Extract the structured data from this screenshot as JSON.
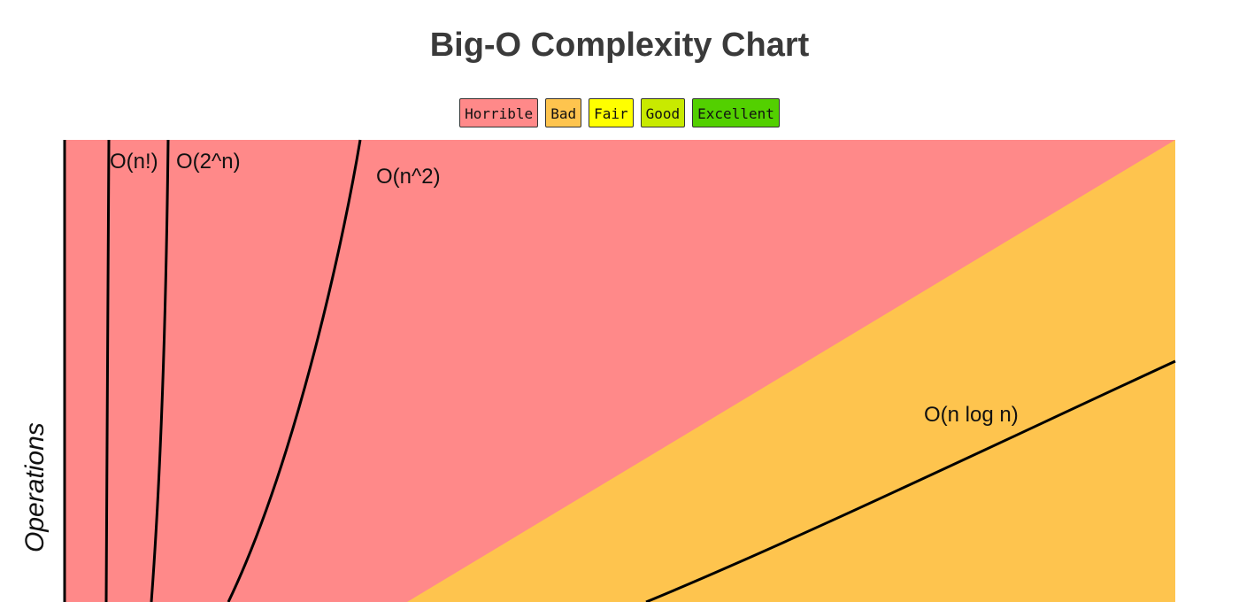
{
  "chart_data": {
    "type": "area",
    "title": "Big-O Complexity Chart",
    "xlabel": "",
    "ylabel": "Operations",
    "legend": {
      "placement": "top-center",
      "entries": [
        {
          "label": "Horrible",
          "color": "#ff8989"
        },
        {
          "label": "Bad",
          "color": "#fec44e"
        },
        {
          "label": "Fair",
          "color": "#ffff00"
        },
        {
          "label": "Good",
          "color": "#c8ea00"
        },
        {
          "label": "Excellent",
          "color": "#53d000"
        }
      ]
    },
    "regions": [
      {
        "rating": "Horrible",
        "color": "#ff8989"
      },
      {
        "rating": "Bad",
        "color": "#fec44e"
      }
    ],
    "series": [
      {
        "name": "O(n!)"
      },
      {
        "name": "O(2^n)"
      },
      {
        "name": "O(n^2)"
      },
      {
        "name": "O(n log n)"
      }
    ],
    "grid": false
  }
}
